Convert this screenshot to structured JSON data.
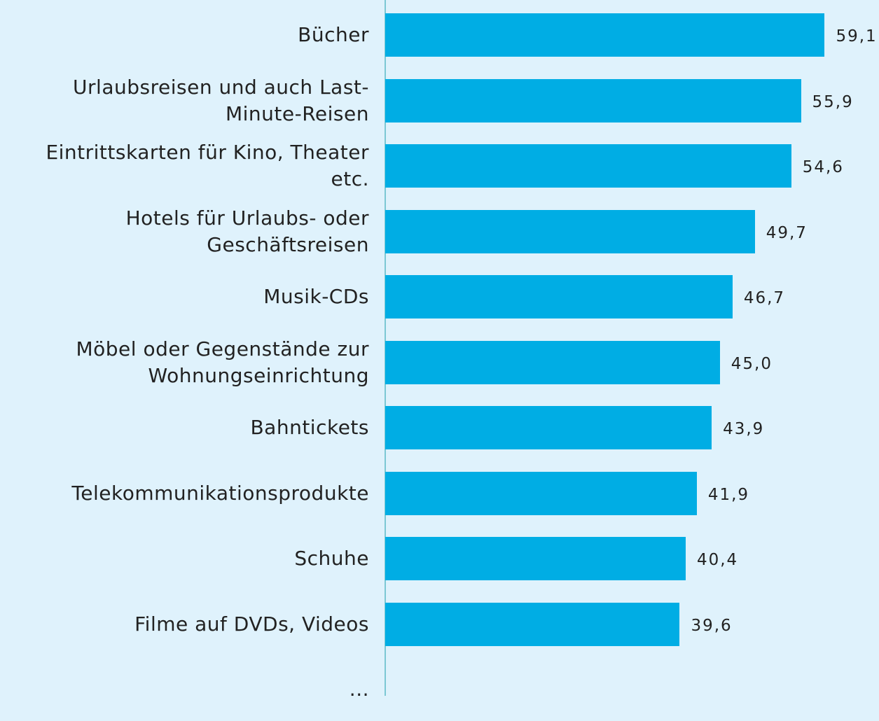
{
  "chart_data": {
    "type": "hbar",
    "categories": [
      "Bücher",
      "Urlaubsreisen und auch Last-Minute-Reisen",
      "Eintrittskarten für Kino, Theater etc.",
      "Hotels für Urlaubs- oder Geschäftsreisen",
      "Musik-CDs",
      "Möbel oder Gegenstände zur Wohnungseinrichtung",
      "Bahntickets",
      "Telekommunikationsprodukte",
      "Schuhe",
      "Filme auf DVDs, Videos",
      "..."
    ],
    "values": [
      59.1,
      55.9,
      54.6,
      49.7,
      46.7,
      45.0,
      43.9,
      41.9,
      40.4,
      39.6,
      null
    ],
    "value_labels": [
      "59,1",
      "55,9",
      "54,6",
      "49,7",
      "46,7",
      "45,0",
      "43,9",
      "41,9",
      "40,4",
      "39,6",
      null
    ],
    "color": "#00ade4",
    "xlim": [
      0,
      66.4
    ]
  }
}
